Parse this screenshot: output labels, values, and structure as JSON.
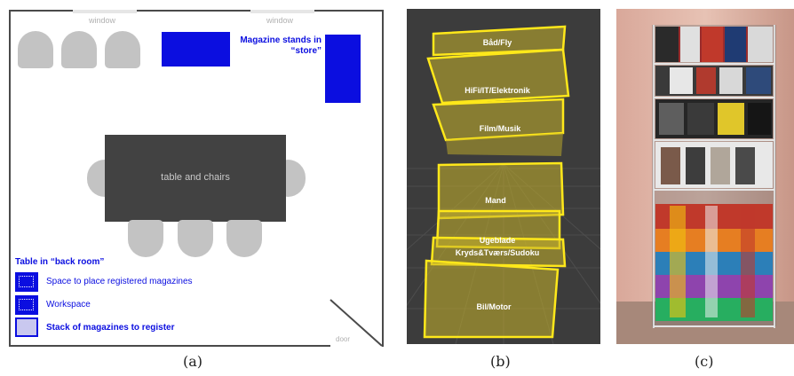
{
  "floor_plan": {
    "window_labels": [
      "window",
      "window"
    ],
    "table_label": "table and chairs",
    "store_label": "Magazine stands in “store”",
    "legend": {
      "title": "Table in “back room”",
      "items": [
        {
          "label": "Space to place registered magazines",
          "style": "dotted"
        },
        {
          "label": "Workspace",
          "style": "dotted"
        },
        {
          "label": "Stack of magazines to register",
          "style": "light"
        }
      ]
    },
    "door_label": "door",
    "colors": {
      "accent_blue": "#0b0ee0",
      "furniture_gray": "#c3c3c3",
      "table_gray": "#424242"
    }
  },
  "ar_view": {
    "shelf_labels": [
      "Båd/Fly",
      "HiFi/IT/Elektronik",
      "Film/Musik",
      "Mand",
      "Ugeblade",
      "Kryds&Tværs/Sudoku",
      "Bil/Motor"
    ],
    "colors": {
      "shelf_outline": "#ffe81a",
      "background": "#3c3c3c"
    }
  },
  "captions": [
    "(a)",
    "(b)",
    "(c)"
  ]
}
